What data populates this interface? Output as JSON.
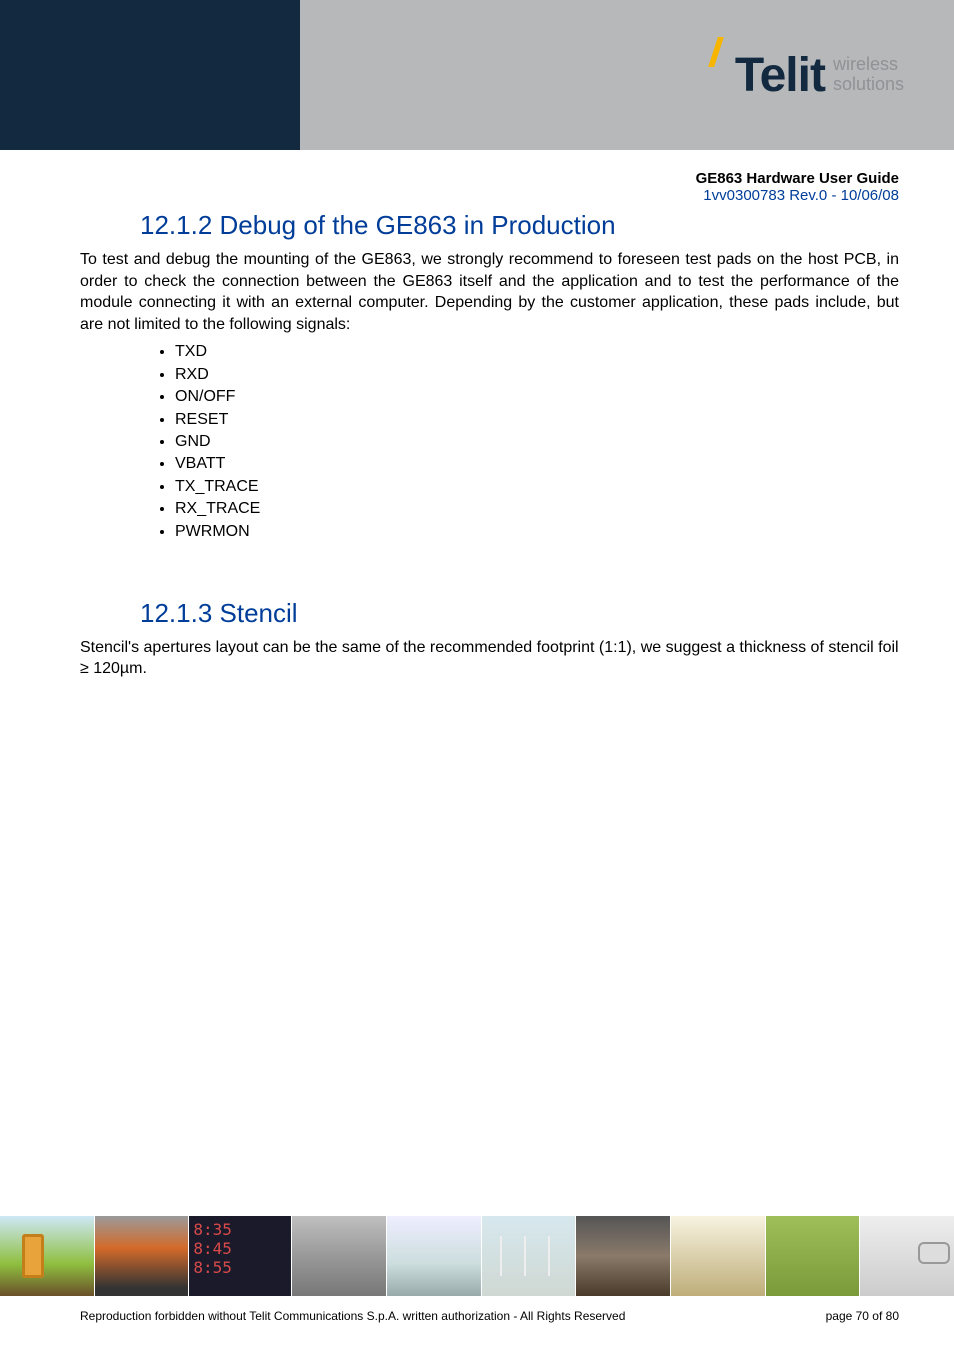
{
  "header": {
    "brand_name": "Telit",
    "tagline_line1": "wireless",
    "tagline_line2": "solutions",
    "band_left_color": "#12293f",
    "band_right_color": "#b6b8ba",
    "accent_color": "#f7b500"
  },
  "meta": {
    "doc_title": "GE863 Hardware User Guide",
    "doc_rev": "1vv0300783 Rev.0 - 10/06/08",
    "rev_color": "#003d99"
  },
  "section1": {
    "heading": "12.1.2 Debug of the GE863 in Production",
    "paragraph": "To test and debug the mounting of the GE863, we strongly recommend to foreseen test pads on the host PCB, in order to check the connection between the GE863 itself and the application and to test the performance of the module connecting it with an external computer. Depending by the customer application, these pads include, but are not limited to the following signals:",
    "signals": [
      "TXD",
      "RXD",
      "ON/OFF",
      "RESET",
      "GND",
      "VBATT",
      "TX_TRACE",
      "RX_TRACE",
      "PWRMON"
    ]
  },
  "section2": {
    "heading": "12.1.3 Stencil",
    "paragraph": "Stencil's apertures layout can be the same of the recommended footprint (1:1), we suggest a thickness of stencil foil ≥ 120µm."
  },
  "footer": {
    "legal": "Reproduction forbidden without Telit Communications S.p.A. written authorization - All Rights Reserved",
    "page": "page 70 of 80",
    "clock_times": [
      "8:35",
      "8:45",
      "8:55"
    ]
  }
}
